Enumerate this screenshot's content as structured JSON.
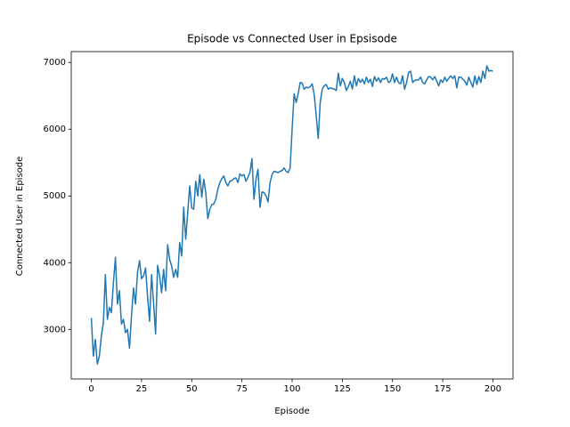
{
  "chart_data": {
    "type": "line",
    "title": "Episode vs Connected User in Epsisode",
    "xlabel": "Episode",
    "ylabel": "Connected User in Episode",
    "color": "#1f77b4",
    "x": [
      0,
      1,
      2,
      3,
      4,
      5,
      6,
      7,
      8,
      9,
      10,
      11,
      12,
      13,
      14,
      15,
      16,
      17,
      18,
      19,
      20,
      21,
      22,
      23,
      24,
      25,
      26,
      27,
      28,
      29,
      30,
      31,
      32,
      33,
      34,
      35,
      36,
      37,
      38,
      39,
      40,
      41,
      42,
      43,
      44,
      45,
      46,
      47,
      48,
      49,
      50,
      51,
      52,
      53,
      54,
      55,
      56,
      57,
      58,
      59,
      60,
      61,
      62,
      63,
      64,
      65,
      66,
      67,
      68,
      69,
      70,
      71,
      72,
      73,
      74,
      75,
      76,
      77,
      78,
      79,
      80,
      81,
      82,
      83,
      84,
      85,
      86,
      87,
      88,
      89,
      90,
      91,
      92,
      93,
      94,
      95,
      96,
      97,
      98,
      99,
      100,
      101,
      102,
      103,
      104,
      105,
      106,
      107,
      108,
      109,
      110,
      111,
      112,
      113,
      114,
      115,
      116,
      117,
      118,
      119,
      120,
      121,
      122,
      123,
      124,
      125,
      126,
      127,
      128,
      129,
      130,
      131,
      132,
      133,
      134,
      135,
      136,
      137,
      138,
      139,
      140,
      141,
      142,
      143,
      144,
      145,
      146,
      147,
      148,
      149,
      150,
      151,
      152,
      153,
      154,
      155,
      156,
      157,
      158,
      159,
      160,
      161,
      162,
      163,
      164,
      165,
      166,
      167,
      168,
      169,
      170,
      171,
      172,
      173,
      174,
      175,
      176,
      177,
      178,
      179,
      180,
      181,
      182,
      183,
      184,
      185,
      186,
      187,
      188,
      189,
      190,
      191,
      192,
      193,
      194,
      195,
      196,
      197,
      198,
      199,
      200
    ],
    "values": [
      3170,
      2600,
      2850,
      2480,
      2600,
      2900,
      3100,
      3820,
      3150,
      3330,
      3250,
      3700,
      4080,
      3380,
      3580,
      3080,
      3150,
      2950,
      3000,
      2720,
      3200,
      3620,
      3380,
      3850,
      4030,
      3760,
      3800,
      3920,
      3500,
      3120,
      3820,
      3400,
      2930,
      3960,
      3800,
      3550,
      3900,
      3580,
      4270,
      4050,
      3950,
      3780,
      3900,
      3780,
      4300,
      4100,
      4830,
      4350,
      4750,
      5150,
      4820,
      4800,
      5220,
      5000,
      5320,
      4980,
      5250,
      5050,
      4660,
      4800,
      4870,
      4880,
      4950,
      5100,
      5200,
      5260,
      5300,
      5200,
      5150,
      5220,
      5230,
      5260,
      5270,
      5200,
      5330,
      5300,
      5320,
      5220,
      5280,
      5350,
      5560,
      4950,
      5250,
      5400,
      4830,
      5060,
      5050,
      5000,
      4910,
      5200,
      5320,
      5370,
      5360,
      5350,
      5370,
      5380,
      5420,
      5370,
      5350,
      5420,
      6000,
      6530,
      6400,
      6530,
      6700,
      6690,
      6600,
      6630,
      6620,
      6640,
      6680,
      6520,
      6200,
      5860,
      6400,
      6600,
      6650,
      6670,
      6600,
      6620,
      6610,
      6600,
      6580,
      6840,
      6650,
      6760,
      6700,
      6580,
      6640,
      6720,
      6600,
      6800,
      6650,
      6760,
      6700,
      6750,
      6680,
      6780,
      6700,
      6750,
      6640,
      6790,
      6720,
      6770,
      6700,
      6760,
      6750,
      6780,
      6700,
      6720,
      6830,
      6700,
      6780,
      6700,
      6680,
      6800,
      6600,
      6700,
      6850,
      6870,
      6700,
      6730,
      6740,
      6740,
      6780,
      6700,
      6680,
      6740,
      6790,
      6780,
      6740,
      6790,
      6720,
      6650,
      6740,
      6700,
      6780,
      6720,
      6760,
      6800,
      6760,
      6800,
      6620,
      6780,
      6780,
      6750,
      6720,
      6660,
      6780,
      6700,
      6630,
      6800,
      6670,
      6790,
      6700,
      6870,
      6760,
      6950,
      6870,
      6880,
      6870
    ],
    "xlim": [
      -10,
      210
    ],
    "xticks": [
      0,
      25,
      50,
      75,
      100,
      125,
      150,
      175,
      200
    ],
    "ylim": [
      2257,
      7163
    ],
    "yticks": [
      3000,
      4000,
      5000,
      6000,
      7000
    ]
  }
}
